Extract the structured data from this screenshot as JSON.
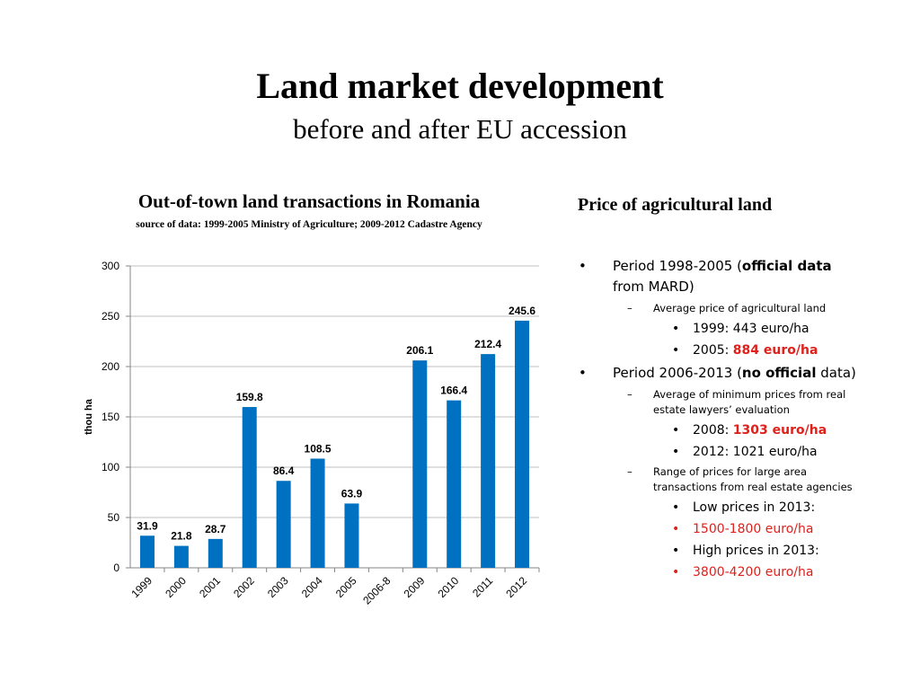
{
  "slide": {
    "title": "Land market development",
    "subtitle": "before and after EU accession"
  },
  "chart_data": {
    "type": "bar",
    "title": "Out-of-town land transactions in Romania",
    "subtitle": "source of data: 1999-2005 Ministry of Agriculture; 2009-2012 Cadastre Agency",
    "ylabel": "thou ha",
    "xlabel": "",
    "ylim": [
      0,
      300
    ],
    "yticks": [
      0,
      50,
      100,
      150,
      200,
      250,
      300
    ],
    "grid": true,
    "bar_color": "#0070c0",
    "categories": [
      "1999",
      "2000",
      "2001",
      "2002",
      "2003",
      "2004",
      "2005",
      "2006-8",
      "2009",
      "2010",
      "2011",
      "2012"
    ],
    "values": [
      31.9,
      21.8,
      28.7,
      159.8,
      86.4,
      108.5,
      63.9,
      null,
      206.1,
      166.4,
      212.4,
      245.6
    ],
    "data_labels": [
      "31.9",
      "21.8",
      "28.7",
      "159.8",
      "86.4",
      "108.5",
      "63.9",
      "",
      "206.1",
      "166.4",
      "212.4",
      "245.6"
    ]
  },
  "price": {
    "title": "Price of agricultural land",
    "marker_colors": {
      "red": "#e0201b"
    },
    "p1": {
      "pre": "Period 1998-2005 (",
      "bold": "official data",
      "post": " from MARD)",
      "sub": "Average price of  agricultural land",
      "y1999": "1999: 443 euro/ha",
      "y2005_pre": "2005: ",
      "y2005_val": "884 euro/ha"
    },
    "p2": {
      "pre": "Period 2006-2013 (",
      "bold": "no official",
      "post": " data)",
      "sub": "Average of minimum  prices from real estate lawyers’ evaluation",
      "y2008_pre": "2008: ",
      "y2008_val": "1303 euro/ha",
      "y2012": "2012: 1021 euro/ha",
      "sub2": "Range of prices for large  area transactions  from real estate agencies",
      "low_label": "Low prices in 2013:",
      "low_val": "1500-1800 euro/ha",
      "high_label": "High prices in 2013:",
      "high_val": "3800-4200 euro/ha"
    }
  }
}
